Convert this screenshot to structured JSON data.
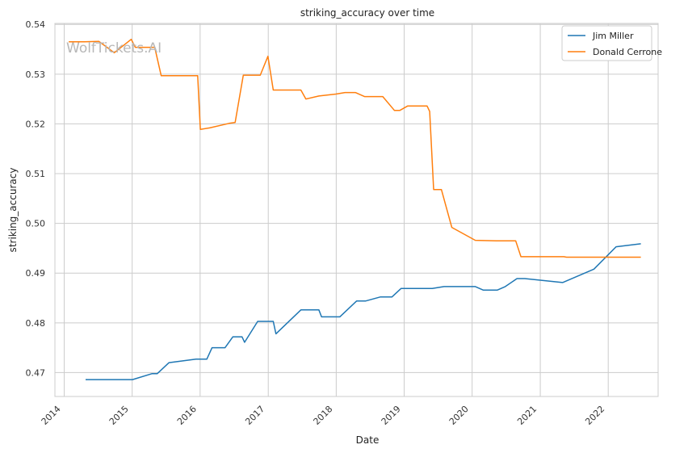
{
  "chart_data": {
    "type": "line",
    "title": "striking_accuracy over time",
    "xlabel": "Date",
    "ylabel": "striking_accuracy",
    "watermark": "WolfTickets.AI",
    "xlim": [
      "2013-11-12",
      "2022-09-26"
    ],
    "ylim": [
      0.4652,
      0.5402
    ],
    "xticks": [
      "2014-01-01",
      "2015-01-01",
      "2016-01-01",
      "2017-01-01",
      "2018-01-01",
      "2019-01-01",
      "2020-01-01",
      "2021-01-01",
      "2022-01-01"
    ],
    "xtick_labels": [
      "2014",
      "2015",
      "2016",
      "2017",
      "2018",
      "2019",
      "2020",
      "2021",
      "2022"
    ],
    "yticks": [
      0.47,
      0.48,
      0.49,
      0.5,
      0.51,
      0.52,
      0.53,
      0.54
    ],
    "ytick_labels": [
      "0.47",
      "0.48",
      "0.49",
      "0.50",
      "0.51",
      "0.52",
      "0.53",
      "0.54"
    ],
    "grid": true,
    "legend_position": "top-right",
    "series": [
      {
        "name": "Jim Miller",
        "color": "#1f77b4",
        "points": [
          [
            "2014-04-26",
            0.4686
          ],
          [
            "2015-01-03",
            0.4686
          ],
          [
            "2015-04-18",
            0.4698
          ],
          [
            "2015-05-16",
            0.4698
          ],
          [
            "2015-07-18",
            0.472
          ],
          [
            "2015-12-10",
            0.4727
          ],
          [
            "2016-02-06",
            0.4727
          ],
          [
            "2016-03-05",
            0.475
          ],
          [
            "2016-05-14",
            0.475
          ],
          [
            "2016-06-25",
            0.4772
          ],
          [
            "2016-08-13",
            0.4772
          ],
          [
            "2016-08-27",
            0.4761
          ],
          [
            "2016-11-05",
            0.4803
          ],
          [
            "2017-01-28",
            0.4803
          ],
          [
            "2017-02-11",
            0.4778
          ],
          [
            "2017-06-25",
            0.4826
          ],
          [
            "2017-09-30",
            0.4826
          ],
          [
            "2017-10-14",
            0.4812
          ],
          [
            "2018-01-20",
            0.4812
          ],
          [
            "2018-04-21",
            0.4844
          ],
          [
            "2018-06-09",
            0.4844
          ],
          [
            "2018-08-25",
            0.4852
          ],
          [
            "2018-10-27",
            0.4852
          ],
          [
            "2018-12-15",
            0.4869
          ],
          [
            "2019-06-01",
            0.4869
          ],
          [
            "2019-08-03",
            0.4873
          ],
          [
            "2020-01-18",
            0.4873
          ],
          [
            "2020-02-29",
            0.4866
          ],
          [
            "2020-05-16",
            0.4866
          ],
          [
            "2020-06-27",
            0.4873
          ],
          [
            "2020-08-29",
            0.4889
          ],
          [
            "2020-10-10",
            0.4889
          ],
          [
            "2021-05-01",
            0.4881
          ],
          [
            "2021-10-16",
            0.4908
          ],
          [
            "2022-02-12",
            0.4953
          ],
          [
            "2022-06-25",
            0.4959
          ]
        ]
      },
      {
        "name": "Donald Cerrone",
        "color": "#ff7f0e",
        "points": [
          [
            "2014-01-25",
            0.5365
          ],
          [
            "2014-04-19",
            0.5365
          ],
          [
            "2014-07-06",
            0.5366
          ],
          [
            "2014-09-27",
            0.5343
          ],
          [
            "2014-12-27",
            0.537
          ],
          [
            "2015-01-18",
            0.5354
          ],
          [
            "2015-05-02",
            0.5354
          ],
          [
            "2015-06-06",
            0.5297
          ],
          [
            "2015-12-19",
            0.5297
          ],
          [
            "2016-01-02",
            0.5189
          ],
          [
            "2016-02-21",
            0.5192
          ],
          [
            "2016-06-04",
            0.5201
          ],
          [
            "2016-07-07",
            0.5203
          ],
          [
            "2016-08-20",
            0.5298
          ],
          [
            "2016-11-19",
            0.5298
          ],
          [
            "2016-12-30",
            0.5336
          ],
          [
            "2017-01-28",
            0.5268
          ],
          [
            "2017-06-25",
            0.5268
          ],
          [
            "2017-07-22",
            0.525
          ],
          [
            "2017-09-30",
            0.5256
          ],
          [
            "2017-12-30",
            0.526
          ],
          [
            "2018-02-17",
            0.5263
          ],
          [
            "2018-04-14",
            0.5263
          ],
          [
            "2018-06-02",
            0.5255
          ],
          [
            "2018-09-08",
            0.5255
          ],
          [
            "2018-11-10",
            0.5227
          ],
          [
            "2018-12-08",
            0.5227
          ],
          [
            "2019-01-19",
            0.5236
          ],
          [
            "2019-05-04",
            0.5236
          ],
          [
            "2019-05-18",
            0.5225
          ],
          [
            "2019-06-08",
            0.5068
          ],
          [
            "2019-07-20",
            0.5068
          ],
          [
            "2019-09-14",
            0.4992
          ],
          [
            "2020-01-18",
            0.4966
          ],
          [
            "2020-05-09",
            0.4965
          ],
          [
            "2020-08-22",
            0.4965
          ],
          [
            "2020-09-19",
            0.4933
          ],
          [
            "2021-05-08",
            0.4933
          ],
          [
            "2021-05-22",
            0.4932
          ],
          [
            "2022-06-25",
            0.4932
          ]
        ]
      }
    ]
  }
}
